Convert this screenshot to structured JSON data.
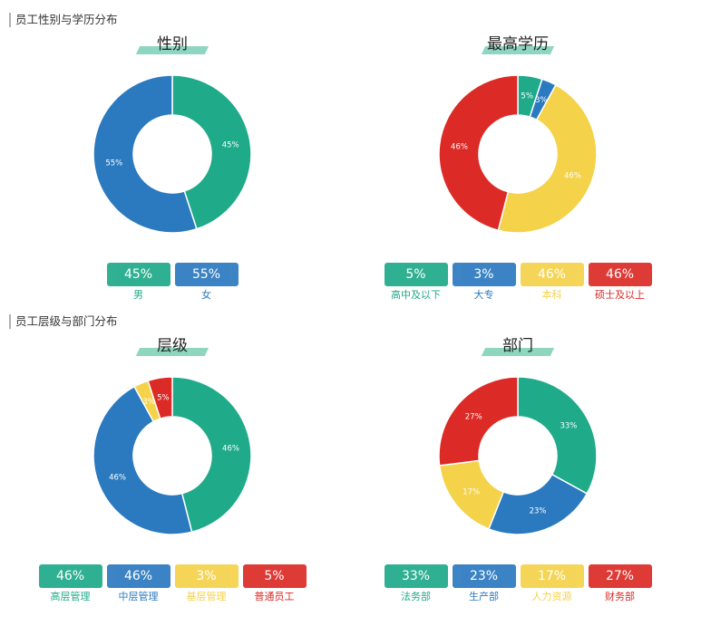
{
  "sections": {
    "top": "员工性别与学历分布",
    "bottom": "员工层级与部门分布"
  },
  "chart_data": [
    {
      "type": "pie",
      "title": "性别",
      "categories": [
        "男",
        "女"
      ],
      "values": [
        45,
        55
      ],
      "value_labels": [
        "45%",
        "55%"
      ],
      "colors": [
        "#1faa89",
        "#2b79bf"
      ]
    },
    {
      "type": "pie",
      "title": "最高学历",
      "categories": [
        "高中及以下",
        "大专",
        "本科",
        "硕士及以上"
      ],
      "values": [
        5,
        3,
        46,
        46
      ],
      "value_labels": [
        "5%",
        "3%",
        "46%",
        "46%"
      ],
      "colors": [
        "#1faa89",
        "#2b79bf",
        "#f4d24a",
        "#dc2a26"
      ]
    },
    {
      "type": "pie",
      "title": "层级",
      "categories": [
        "高层管理",
        "中层管理",
        "基层管理",
        "普通员工"
      ],
      "values": [
        46,
        46,
        3,
        5
      ],
      "value_labels": [
        "46%",
        "46%",
        "3%",
        "5%"
      ],
      "colors": [
        "#1faa89",
        "#2b79bf",
        "#f4d24a",
        "#dc2a26"
      ]
    },
    {
      "type": "pie",
      "title": "部门",
      "categories": [
        "法务部",
        "生产部",
        "人力资源",
        "财务部"
      ],
      "values": [
        33,
        23,
        17,
        27
      ],
      "value_labels": [
        "33%",
        "23%",
        "17%",
        "27%"
      ],
      "colors": [
        "#1faa89",
        "#2b79bf",
        "#f4d24a",
        "#dc2a26"
      ]
    }
  ]
}
